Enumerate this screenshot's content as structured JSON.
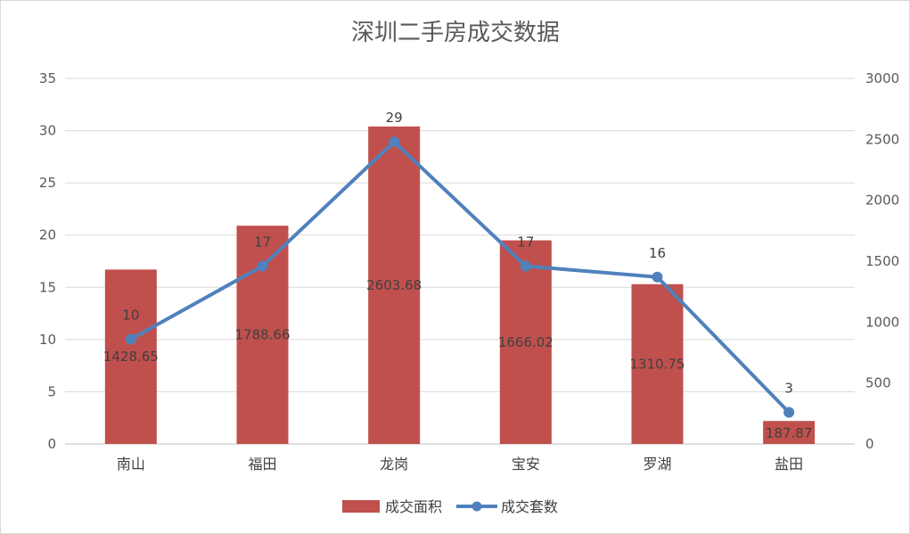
{
  "chart_data": {
    "type": "bar",
    "title": "深圳二手房成交数据",
    "categories": [
      "南山",
      "福田",
      "龙岗",
      "宝安",
      "罗湖",
      "盐田"
    ],
    "series": [
      {
        "name": "成交面积",
        "type": "bar",
        "axis": "left",
        "color": "#c0504d",
        "values": [
          16.7,
          20.9,
          30.4,
          19.5,
          15.3,
          2.2
        ],
        "data_labels": [
          "1428.65",
          "1788.66",
          "2603.68",
          "1666.02",
          "1310.75",
          "187.87"
        ]
      },
      {
        "name": "成交套数",
        "type": "line",
        "axis": "right",
        "color": "#4f81bd",
        "values": [
          860,
          1460,
          2480,
          1460,
          1370,
          260
        ],
        "data_labels": [
          "10",
          "17",
          "29",
          "17",
          "16",
          "3"
        ]
      }
    ],
    "y_left": {
      "min": 0,
      "max": 35,
      "step": 5,
      "ticks": [
        "0",
        "5",
        "10",
        "15",
        "20",
        "25",
        "30",
        "35"
      ]
    },
    "y_right": {
      "min": 0,
      "max": 3000,
      "step": 500,
      "ticks": [
        "0",
        "500",
        "1000",
        "1500",
        "2000",
        "2500",
        "3000"
      ]
    },
    "grid": true,
    "legend_position": "bottom"
  }
}
